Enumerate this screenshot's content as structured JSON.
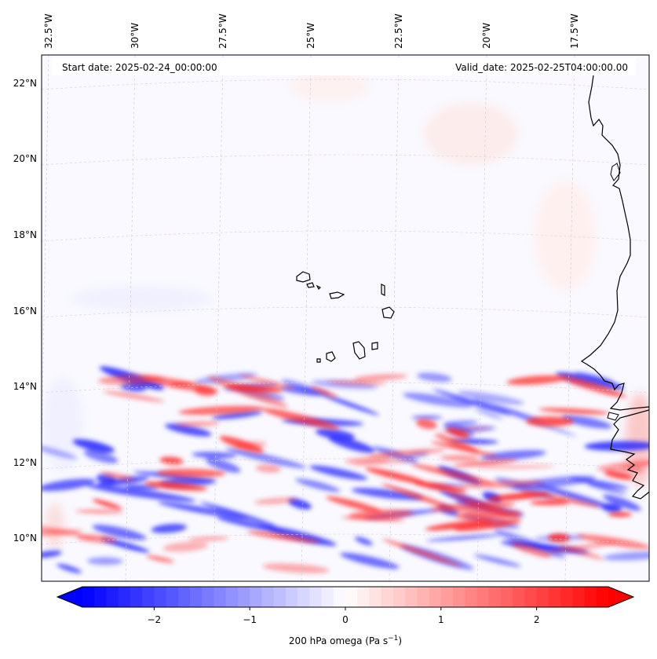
{
  "map": {
    "title_left": "Start date: 2025-02-24_00:00:00",
    "title_right": "Valid_date: 2025-02-25T04:00:00.00",
    "lon_labels": [
      "32.5°W",
      "30°W",
      "27.5°W",
      "25°W",
      "22.5°W",
      "20°W",
      "17.5°W"
    ],
    "lat_labels": [
      "22°N",
      "20°N",
      "18°N",
      "16°N",
      "14°N",
      "12°N",
      "10°N"
    ],
    "variable": "200 hPa omega",
    "region": "Cabo Verde and West African coast"
  },
  "colorbar": {
    "label_text": "200 hPa omega (Pa s",
    "label_sup": "−1",
    "label_close": ")",
    "ticks": [
      "−2",
      "−1",
      "0",
      "1",
      "2"
    ],
    "tick_values": [
      -2,
      -1,
      0,
      1,
      2
    ],
    "vmin": -2.75,
    "vmax": 2.75,
    "color_low": "#0000ff",
    "color_mid": "#ffffff",
    "color_high": "#ff0000"
  }
}
